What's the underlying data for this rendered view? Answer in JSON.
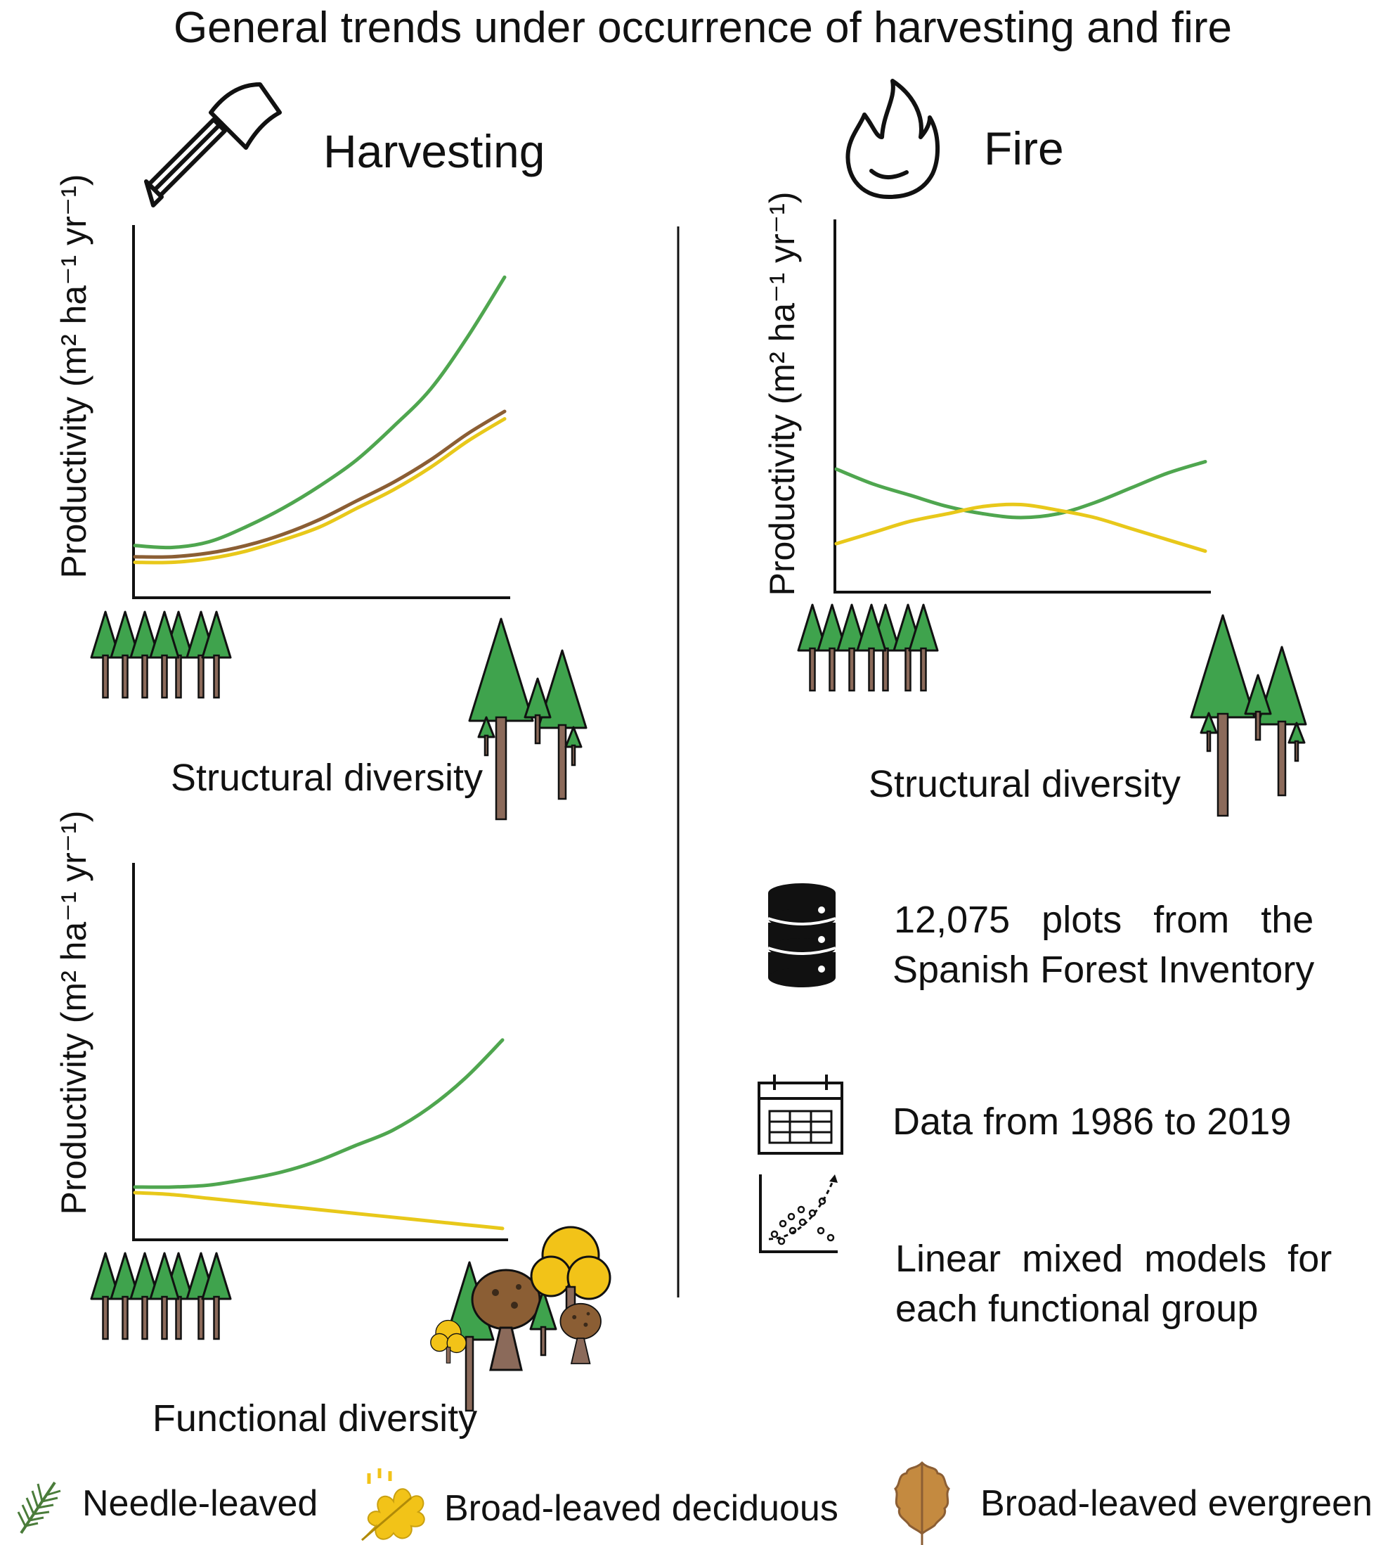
{
  "title": "General trends under occurrence of harvesting and fire",
  "colors": {
    "needle_leaved": "#4fa64f",
    "broad_leaved_deciduous": "#e8c81a",
    "broad_leaved_evergreen": "#8b5e34"
  },
  "panels": {
    "harvesting": {
      "label": "Harvesting",
      "icon": "axe-icon"
    },
    "fire": {
      "label": "Fire",
      "icon": "flame-icon"
    }
  },
  "ylabel": "Productivity (m² ha⁻¹ yr⁻¹)",
  "chart_data": [
    {
      "type": "line",
      "name": "harvesting-structural",
      "xlabel": "Structural diversity",
      "ylabel": "Productivity (m² ha⁻¹ yr⁻¹)",
      "x": [
        0,
        0.1,
        0.2,
        0.3,
        0.4,
        0.5,
        0.6,
        0.7,
        0.8,
        0.9,
        1.0
      ],
      "series": [
        {
          "group": "needle_leaved",
          "values": [
            0.14,
            0.135,
            0.15,
            0.19,
            0.24,
            0.3,
            0.37,
            0.46,
            0.56,
            0.7,
            0.86
          ]
        },
        {
          "group": "broad_leaved_evergreen",
          "values": [
            0.11,
            0.11,
            0.12,
            0.14,
            0.17,
            0.21,
            0.26,
            0.31,
            0.37,
            0.44,
            0.5
          ]
        },
        {
          "group": "broad_leaved_deciduous",
          "values": [
            0.095,
            0.095,
            0.105,
            0.125,
            0.155,
            0.19,
            0.24,
            0.29,
            0.35,
            0.42,
            0.48
          ]
        }
      ]
    },
    {
      "type": "line",
      "name": "fire-structural",
      "xlabel": "Structural diversity",
      "ylabel": "Productivity (m² ha⁻¹ yr⁻¹)",
      "x": [
        0,
        0.1,
        0.2,
        0.3,
        0.4,
        0.5,
        0.6,
        0.7,
        0.8,
        0.9,
        1.0
      ],
      "series": [
        {
          "group": "needle_leaved",
          "values": [
            0.33,
            0.29,
            0.26,
            0.23,
            0.21,
            0.2,
            0.21,
            0.24,
            0.28,
            0.32,
            0.35
          ]
        },
        {
          "group": "broad_leaved_deciduous",
          "values": [
            0.13,
            0.16,
            0.19,
            0.21,
            0.23,
            0.235,
            0.22,
            0.2,
            0.17,
            0.14,
            0.11
          ]
        }
      ]
    },
    {
      "type": "line",
      "name": "harvesting-functional",
      "xlabel": "Functional diversity",
      "ylabel": "Productivity (m² ha⁻¹ yr⁻¹)",
      "x": [
        0,
        0.1,
        0.2,
        0.3,
        0.4,
        0.5,
        0.6,
        0.7,
        0.8,
        0.9,
        1.0
      ],
      "series": [
        {
          "group": "needle_leaved",
          "values": [
            0.14,
            0.14,
            0.145,
            0.16,
            0.18,
            0.21,
            0.25,
            0.29,
            0.35,
            0.43,
            0.53
          ]
        },
        {
          "group": "broad_leaved_deciduous",
          "values": [
            0.125,
            0.12,
            0.11,
            0.1,
            0.09,
            0.08,
            0.07,
            0.06,
            0.05,
            0.04,
            0.03
          ]
        }
      ]
    }
  ],
  "info": [
    {
      "icon": "database-icon",
      "lines": [
        "12,075   plots   from   the",
        "Spanish Forest Inventory"
      ]
    },
    {
      "icon": "calendar-icon",
      "lines": [
        "Data from 1986 to 2019"
      ]
    },
    {
      "icon": "scatter-plot-icon",
      "lines": [
        "Linear  mixed  models  for",
        "each functional group"
      ]
    }
  ],
  "legend": [
    {
      "icon": "needle-leaf-icon",
      "label": "Needle-leaved"
    },
    {
      "icon": "oak-leaf-icon",
      "label": "Broad-leaved deciduous"
    },
    {
      "icon": "evergreen-leaf-icon",
      "label": "Broad-leaved evergreen"
    }
  ]
}
